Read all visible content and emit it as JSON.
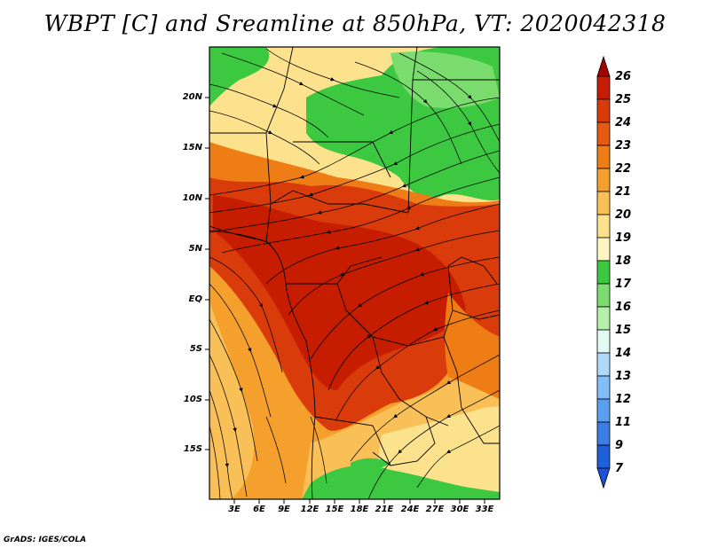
{
  "title": "WBPT [C] and Sreamline at 850hPa, VT: 2020042318",
  "lat_labels": [
    "20N",
    "15N",
    "10N",
    "5N",
    "EQ",
    "5S",
    "10S",
    "15S"
  ],
  "lon_labels": [
    "3E",
    "6E",
    "9E",
    "12E",
    "15E",
    "18E",
    "21E",
    "24E",
    "27E",
    "30E",
    "33E"
  ],
  "colorbar": {
    "levels": [
      "26",
      "25",
      "24",
      "23",
      "22",
      "21",
      "20",
      "19",
      "18",
      "17",
      "16",
      "15",
      "14",
      "13",
      "12",
      "11",
      "9",
      "7"
    ],
    "colors": [
      "#a50000",
      "#c61c00",
      "#d93c0a",
      "#e55a10",
      "#ef7d15",
      "#f5a02d",
      "#f8c056",
      "#fde28e",
      "#fff6c0",
      "#3cc840",
      "#79dc6c",
      "#b4f0a8",
      "#e2faf4",
      "#aed8f8",
      "#82bef8",
      "#5aa0f0",
      "#3c7ee8",
      "#1e60dc",
      "#1c50d8"
    ]
  },
  "credit": "GrADS: IGES/COLA"
}
